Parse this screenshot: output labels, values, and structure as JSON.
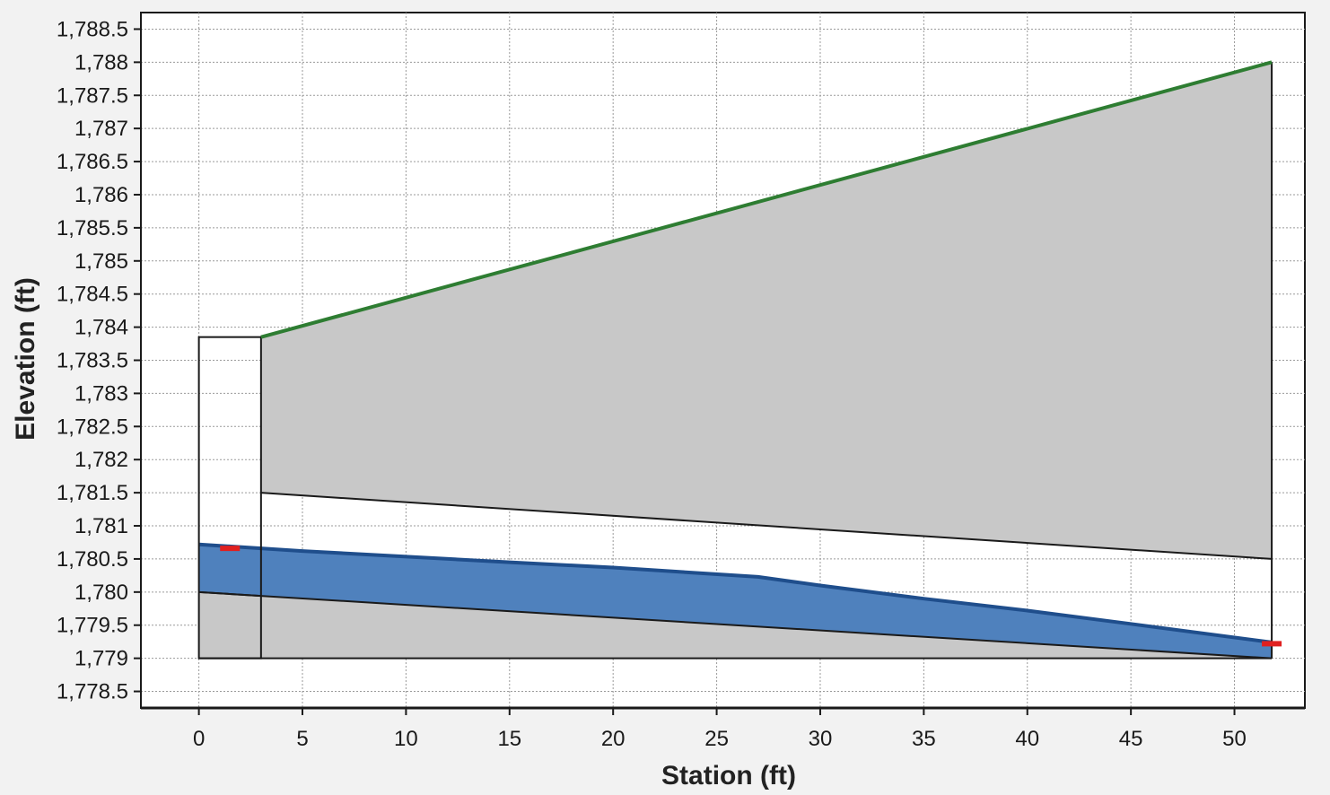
{
  "chart_data": {
    "type": "area",
    "title": "",
    "xlabel": "Station (ft)",
    "ylabel": "Elevation (ft)",
    "xlim": [
      -2.8,
      53.4
    ],
    "ylim": [
      1778.25,
      1788.75
    ],
    "x_ticks": [
      0,
      5,
      10,
      15,
      20,
      25,
      30,
      35,
      40,
      45,
      50
    ],
    "x_tick_labels": [
      "0",
      "5",
      "10",
      "15",
      "20",
      "25",
      "30",
      "35",
      "40",
      "45",
      "50"
    ],
    "y_ticks": [
      1778.5,
      1779,
      1779.5,
      1780,
      1780.5,
      1781,
      1781.5,
      1782,
      1782.5,
      1783,
      1783.5,
      1784,
      1784.5,
      1785,
      1785.5,
      1786,
      1786.5,
      1787,
      1787.5,
      1788,
      1788.5
    ],
    "y_tick_labels": [
      "1,778.5",
      "1,779",
      "1,779.5",
      "1,780",
      "1,780.5",
      "1,781",
      "1,781.5",
      "1,782",
      "1,782.5",
      "1,783",
      "1,783.5",
      "1,784",
      "1,784.5",
      "1,785",
      "1,785.5",
      "1,786",
      "1,786.5",
      "1,787",
      "1,787.5",
      "1,788",
      "1,788.5"
    ],
    "grid": true,
    "colors": {
      "embankment_fill": "#c8c8c8",
      "road_line": "#2e7d32",
      "water_fill": "#4f81bd",
      "water_edge": "#1f4e8c",
      "marker": "#e02020",
      "outline": "#1a1a1a",
      "grid": "#9a9a9a"
    },
    "embankment": {
      "road_profile": [
        [
          3,
          1783.85
        ],
        [
          51.8,
          1788.0
        ]
      ],
      "culvert_crown": [
        [
          3,
          1781.5
        ],
        [
          51.8,
          1780.5
        ]
      ],
      "culvert_invert": [
        [
          0,
          1780.0
        ],
        [
          51.8,
          1779.0
        ]
      ],
      "base_elevation": 1779.0
    },
    "inlet_box": {
      "x": [
        0,
        3
      ],
      "top": 1783.85,
      "bottom": 1779.0
    },
    "water_surface": [
      [
        0,
        1780.72
      ],
      [
        5,
        1780.62
      ],
      [
        15,
        1780.45
      ],
      [
        20,
        1780.37
      ],
      [
        27,
        1780.23
      ],
      [
        30,
        1780.1
      ],
      [
        35,
        1779.9
      ],
      [
        40,
        1779.72
      ],
      [
        45,
        1779.52
      ],
      [
        51.8,
        1779.24
      ]
    ],
    "water_bottom": [
      [
        0,
        1780.0
      ],
      [
        51.8,
        1779.0
      ]
    ],
    "markers": [
      [
        1.5,
        1780.66
      ],
      [
        51.8,
        1779.22
      ]
    ]
  }
}
